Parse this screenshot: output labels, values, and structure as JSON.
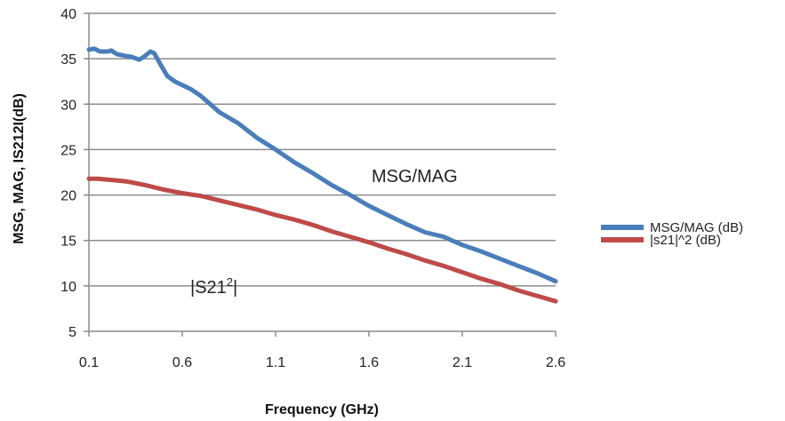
{
  "chart_data": {
    "type": "line",
    "xlabel": "Frequency (GHz)",
    "ylabel": "MSG, MAG, IS212I(dB)",
    "xlim": [
      0.1,
      2.6
    ],
    "ylim": [
      5,
      40
    ],
    "xticks": [
      "0.1",
      "0.6",
      "1.1",
      "1.6",
      "2.1",
      "2.6"
    ],
    "yticks": [
      "5",
      "10",
      "15",
      "20",
      "25",
      "30",
      "35",
      "40"
    ],
    "grid": "horizontal",
    "legend_position": "right",
    "annotations": {
      "msg_label": "MSG/MAG",
      "s21_base": "|S21",
      "s21_sup": "2",
      "s21_end": "|"
    },
    "series": [
      {
        "name": "MSG/MAG (dB)",
        "color": "#4a7ebb",
        "x": [
          0.1,
          0.13,
          0.16,
          0.2,
          0.22,
          0.25,
          0.3,
          0.33,
          0.37,
          0.4,
          0.43,
          0.45,
          0.48,
          0.52,
          0.56,
          0.6,
          0.65,
          0.7,
          0.75,
          0.8,
          0.85,
          0.9,
          1.0,
          1.1,
          1.2,
          1.3,
          1.4,
          1.5,
          1.6,
          1.7,
          1.8,
          1.9,
          2.0,
          2.1,
          2.2,
          2.3,
          2.4,
          2.5,
          2.6
        ],
        "y": [
          36.0,
          36.1,
          35.8,
          35.8,
          35.9,
          35.5,
          35.3,
          35.2,
          34.9,
          35.3,
          35.8,
          35.6,
          34.5,
          33.1,
          32.5,
          32.1,
          31.6,
          30.9,
          30.0,
          29.1,
          28.5,
          27.9,
          26.3,
          25.0,
          23.6,
          22.4,
          21.1,
          20.0,
          18.8,
          17.8,
          16.8,
          15.9,
          15.4,
          14.5,
          13.8,
          13.0,
          12.2,
          11.4,
          10.5
        ]
      },
      {
        "name": "|s21|^2 (dB)",
        "color": "#be4b48",
        "x": [
          0.1,
          0.15,
          0.2,
          0.3,
          0.4,
          0.5,
          0.6,
          0.7,
          0.8,
          0.9,
          1.0,
          1.1,
          1.2,
          1.3,
          1.4,
          1.5,
          1.6,
          1.7,
          1.8,
          1.9,
          2.0,
          2.1,
          2.2,
          2.3,
          2.4,
          2.5,
          2.6
        ],
        "y": [
          21.8,
          21.8,
          21.7,
          21.5,
          21.1,
          20.6,
          20.2,
          19.9,
          19.4,
          18.9,
          18.4,
          17.8,
          17.3,
          16.7,
          16.0,
          15.4,
          14.8,
          14.1,
          13.5,
          12.8,
          12.2,
          11.5,
          10.8,
          10.2,
          9.5,
          8.9,
          8.3
        ]
      }
    ]
  }
}
